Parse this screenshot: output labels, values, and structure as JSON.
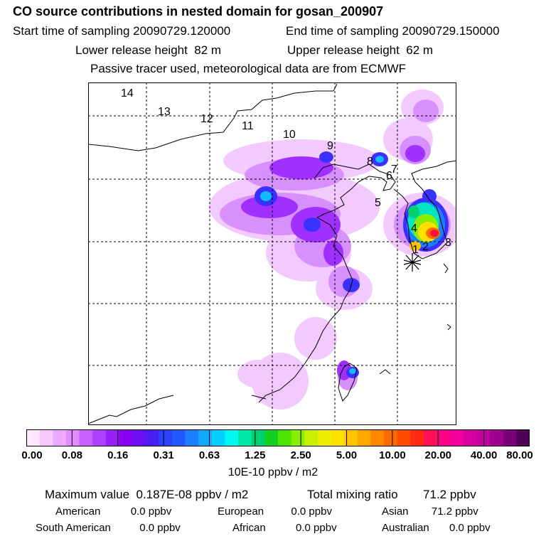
{
  "header": {
    "title": "CO  source contributions in nested domain for gosan_200907",
    "start_label": "Start time of sampling",
    "start_value": "20090729.120000",
    "end_label": "End time of sampling",
    "end_value": "20090729.150000",
    "lower_label": "Lower release height",
    "lower_value": "82 m",
    "upper_label": "Upper release height",
    "upper_value": "62 m",
    "note": "Passive tracer used, meteorological data are from ECMWF"
  },
  "map": {
    "track_labels": [
      "14",
      "13",
      "12",
      "11",
      "10",
      "9",
      "8",
      "7",
      "6",
      "5",
      "4",
      "3",
      "2",
      "1"
    ],
    "receptor_marker": "asterisk"
  },
  "colorbar": {
    "labels": [
      "0.00",
      "0.08",
      "0.16",
      "0.31",
      "0.63",
      "1.25",
      "2.50",
      "5.00",
      "10.00",
      "20.00",
      "40.00",
      "80.00"
    ],
    "unit": "10E-10 ppbv / m2",
    "colors": [
      "#ffe8ff",
      "#f7c8ff",
      "#eeaaff",
      "#e28aff",
      "#c860ff",
      "#b040ff",
      "#9a20f5",
      "#8800ee",
      "#6a10ee",
      "#4a1eee",
      "#3040ff",
      "#205aff",
      "#1a80ff",
      "#10a8ff",
      "#00d0ff",
      "#00f8ee",
      "#00e6aa",
      "#00d070",
      "#12d020",
      "#4ae400",
      "#8aee00",
      "#c8f000",
      "#eef000",
      "#ffe000",
      "#ffc400",
      "#ffa800",
      "#ff8800",
      "#ff6a00",
      "#ff4a00",
      "#ff2a10",
      "#ff1055",
      "#ff0088",
      "#f00099",
      "#d800a0",
      "#c000a0",
      "#a00090",
      "#7a0077",
      "#500055"
    ]
  },
  "footer": {
    "max_label": "Maximum value",
    "max_value": "0.187E-08 ppbv / m2",
    "total_label": "Total mixing ratio",
    "total_value": "71.2 ppbv",
    "regions": [
      {
        "name": "American",
        "value": "0.0 ppbv"
      },
      {
        "name": "European",
        "value": "0.0 ppbv"
      },
      {
        "name": "Asian",
        "value": "71.2 ppbv"
      },
      {
        "name": "South American",
        "value": "0.0 ppbv"
      },
      {
        "name": "African",
        "value": "0.0 ppbv"
      },
      {
        "name": "Australian",
        "value": "0.0 ppbv"
      }
    ]
  }
}
